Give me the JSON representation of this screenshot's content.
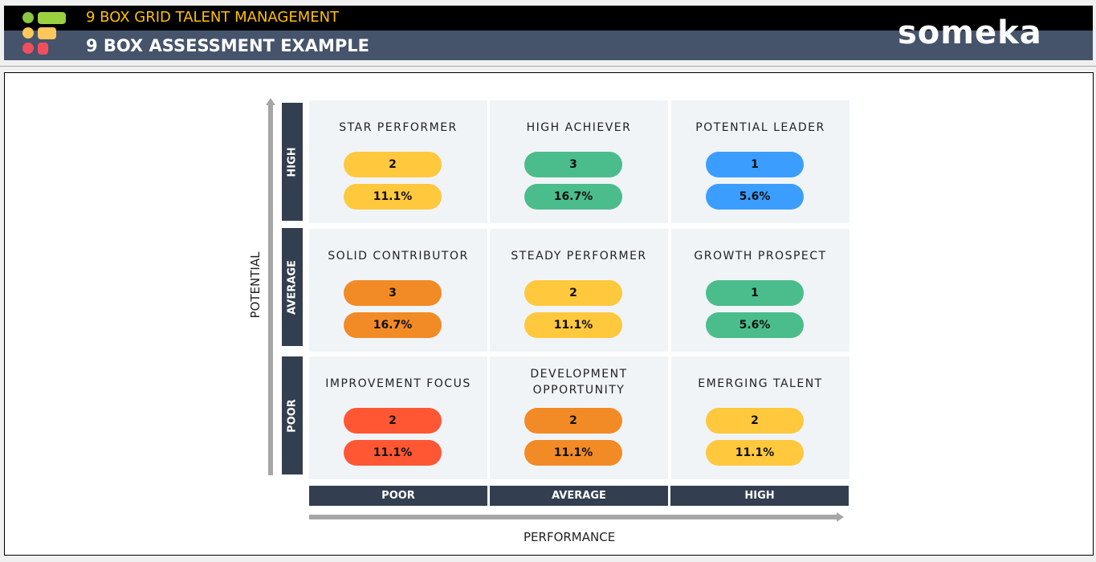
{
  "header": {
    "app_title": "9 BOX GRID TALENT MANAGEMENT",
    "page_title": "9 BOX ASSESSMENT EXAMPLE",
    "logo": "someka"
  },
  "axes": {
    "y_label": "POTENTIAL",
    "x_label": "PERFORMANCE",
    "y_levels": [
      "HIGH",
      "AVERAGE",
      "POOR"
    ],
    "x_levels": [
      "POOR",
      "AVERAGE",
      "HIGH"
    ]
  },
  "colors": {
    "yellow": "#FFC83D",
    "green": "#4BBD8C",
    "blue": "#3B9EFF",
    "orange": "#F28A26",
    "red": "#FF5733"
  },
  "grid": [
    {
      "title": "STAR PERFORMER",
      "count": "2",
      "pct": "11.1%",
      "color": "#FFC83D"
    },
    {
      "title": "HIGH ACHIEVER",
      "count": "3",
      "pct": "16.7%",
      "color": "#4BBD8C"
    },
    {
      "title": "POTENTIAL LEADER",
      "count": "1",
      "pct": "5.6%",
      "color": "#3B9EFF"
    },
    {
      "title": "SOLID CONTRIBUTOR",
      "count": "3",
      "pct": "16.7%",
      "color": "#F28A26"
    },
    {
      "title": "STEADY PERFORMER",
      "count": "2",
      "pct": "11.1%",
      "color": "#FFC83D"
    },
    {
      "title": "GROWTH PROSPECT",
      "count": "1",
      "pct": "5.6%",
      "color": "#4BBD8C"
    },
    {
      "title": "IMPROVEMENT FOCUS",
      "count": "2",
      "pct": "11.1%",
      "color": "#FF5733"
    },
    {
      "title": "DEVELOPMENT OPPORTUNITY",
      "count": "2",
      "pct": "11.1%",
      "color": "#F28A26"
    },
    {
      "title": "EMERGING TALENT",
      "count": "2",
      "pct": "11.1%",
      "color": "#FFC83D"
    }
  ]
}
